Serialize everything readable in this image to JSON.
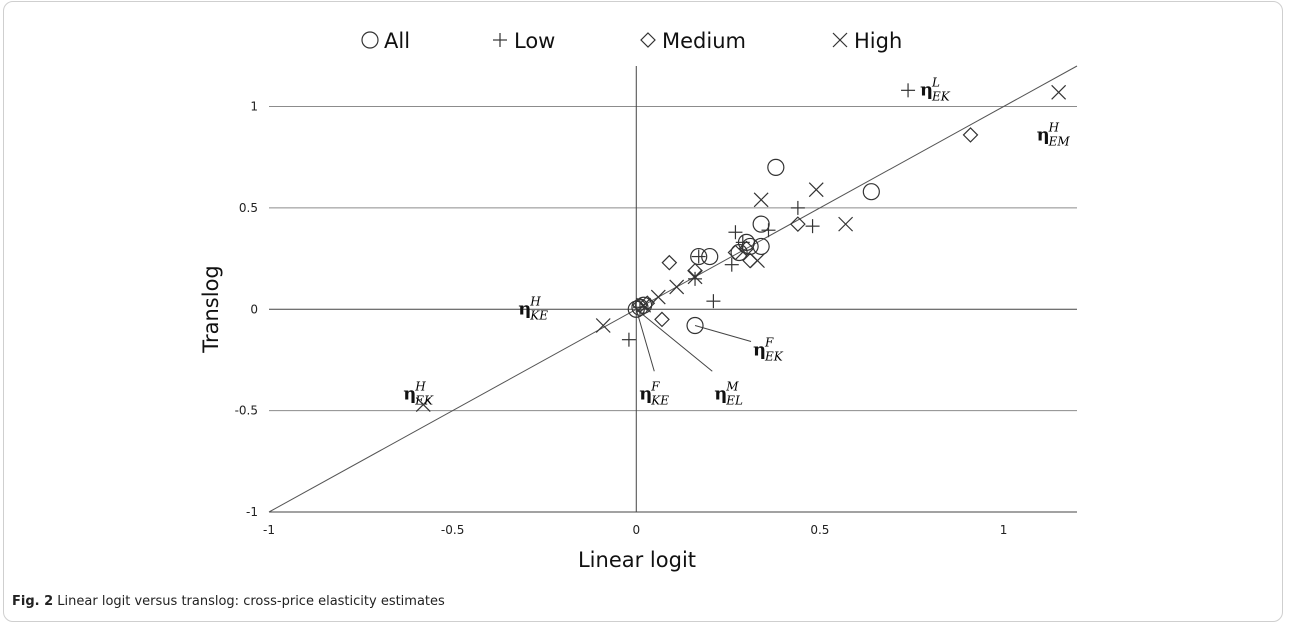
{
  "caption": {
    "label": "Fig. 2",
    "text": "Linear logit versus translog: cross-price elasticity estimates"
  },
  "colors": {
    "marker": "#333333",
    "gridline": "#8c8c8c",
    "axis": "#444444",
    "fitline": "#555555"
  },
  "chart_data": {
    "type": "scatter",
    "xlabel": "Linear logit",
    "ylabel": "Translog",
    "xlim": [
      -1,
      1.2
    ],
    "ylim": [
      -1,
      1.2
    ],
    "xticks": [
      -1,
      -0.5,
      0,
      0.5,
      1
    ],
    "xtick_labels": [
      "-1",
      "-0.5",
      "0",
      "0.5",
      "1"
    ],
    "yticks": [
      -1,
      -0.5,
      0,
      0.5,
      1
    ],
    "ytick_labels": [
      "-1",
      "-0.5",
      "0",
      "0.5",
      "1"
    ],
    "grid": "horizontal",
    "legend_position": "top",
    "reference_line": {
      "slope": 1,
      "intercept": 0
    },
    "series": [
      {
        "name": "All",
        "marker": "circle",
        "points": [
          [
            0.38,
            0.7
          ],
          [
            0.64,
            0.58
          ],
          [
            0.34,
            0.42
          ],
          [
            0.17,
            0.26
          ],
          [
            0.2,
            0.26
          ],
          [
            0.34,
            0.31
          ],
          [
            0.3,
            0.33
          ],
          [
            0.31,
            0.31
          ],
          [
            0.28,
            0.28
          ],
          [
            0.16,
            -0.08
          ],
          [
            0.01,
            0.01
          ],
          [
            0.0,
            0.0
          ],
          [
            0.02,
            0.02
          ]
        ]
      },
      {
        "name": "Low",
        "marker": "plus",
        "points": [
          [
            0.74,
            1.08
          ],
          [
            0.44,
            0.5
          ],
          [
            0.48,
            0.41
          ],
          [
            0.36,
            0.39
          ],
          [
            0.27,
            0.38
          ],
          [
            0.29,
            0.33
          ],
          [
            0.26,
            0.22
          ],
          [
            0.17,
            0.26
          ],
          [
            0.21,
            0.04
          ],
          [
            0.16,
            0.15
          ],
          [
            -0.02,
            -0.15
          ],
          [
            0.01,
            0.01
          ]
        ]
      },
      {
        "name": "Medium",
        "marker": "diamond",
        "points": [
          [
            0.91,
            0.86
          ],
          [
            0.44,
            0.42
          ],
          [
            0.09,
            0.23
          ],
          [
            0.31,
            0.24
          ],
          [
            0.3,
            0.3
          ],
          [
            0.27,
            0.28
          ],
          [
            0.16,
            0.19
          ],
          [
            0.07,
            -0.05
          ],
          [
            0.01,
            0.02
          ],
          [
            0.03,
            0.03
          ]
        ]
      },
      {
        "name": "High",
        "marker": "cross",
        "points": [
          [
            1.15,
            1.07
          ],
          [
            0.34,
            0.54
          ],
          [
            0.49,
            0.59
          ],
          [
            0.57,
            0.42
          ],
          [
            0.33,
            0.24
          ],
          [
            0.16,
            0.16
          ],
          [
            0.11,
            0.11
          ],
          [
            0.06,
            0.06
          ],
          [
            0.02,
            0.02
          ],
          [
            -0.09,
            -0.08
          ],
          [
            -0.58,
            -0.47
          ]
        ]
      }
    ],
    "annotations": [
      {
        "base": "η",
        "sup": "L",
        "sub": "EK",
        "x": 0.74,
        "y": 1.08,
        "dx": 12,
        "dy": 5
      },
      {
        "base": "η",
        "sup": "H",
        "sub": "EM",
        "x": 1.15,
        "y": 1.07,
        "dx": -22,
        "dy": 48
      },
      {
        "base": "η",
        "sup": "H",
        "sub": "KE",
        "x": 0.0,
        "y": 0.0,
        "dx": -118,
        "dy": 5
      },
      {
        "base": "η",
        "sup": "F",
        "sub": "EK",
        "x": 0.16,
        "y": -0.08,
        "dx": 58,
        "dy": 30
      },
      {
        "base": "η",
        "sup": "H",
        "sub": "EK",
        "x": -0.58,
        "y": -0.47,
        "dx": -20,
        "dy": -5
      },
      {
        "base": "η",
        "sup": "F",
        "sub": "KE",
        "x": 0.0,
        "y": 0.0,
        "dx": 3,
        "dy": 90
      },
      {
        "base": "η",
        "sup": "M",
        "sub": "EL",
        "x": 0.0,
        "y": 0.0,
        "dx": 78,
        "dy": 90
      }
    ],
    "leader_lines": [
      {
        "from": [
          0.16,
          -0.08
        ],
        "to_dx": 56,
        "to_dy": 16
      },
      {
        "from": [
          0.0,
          0.0
        ],
        "to_dx": 18,
        "to_dy": 62
      },
      {
        "from": [
          0.0,
          0.0
        ],
        "to_dx": 76,
        "to_dy": 62
      }
    ]
  }
}
